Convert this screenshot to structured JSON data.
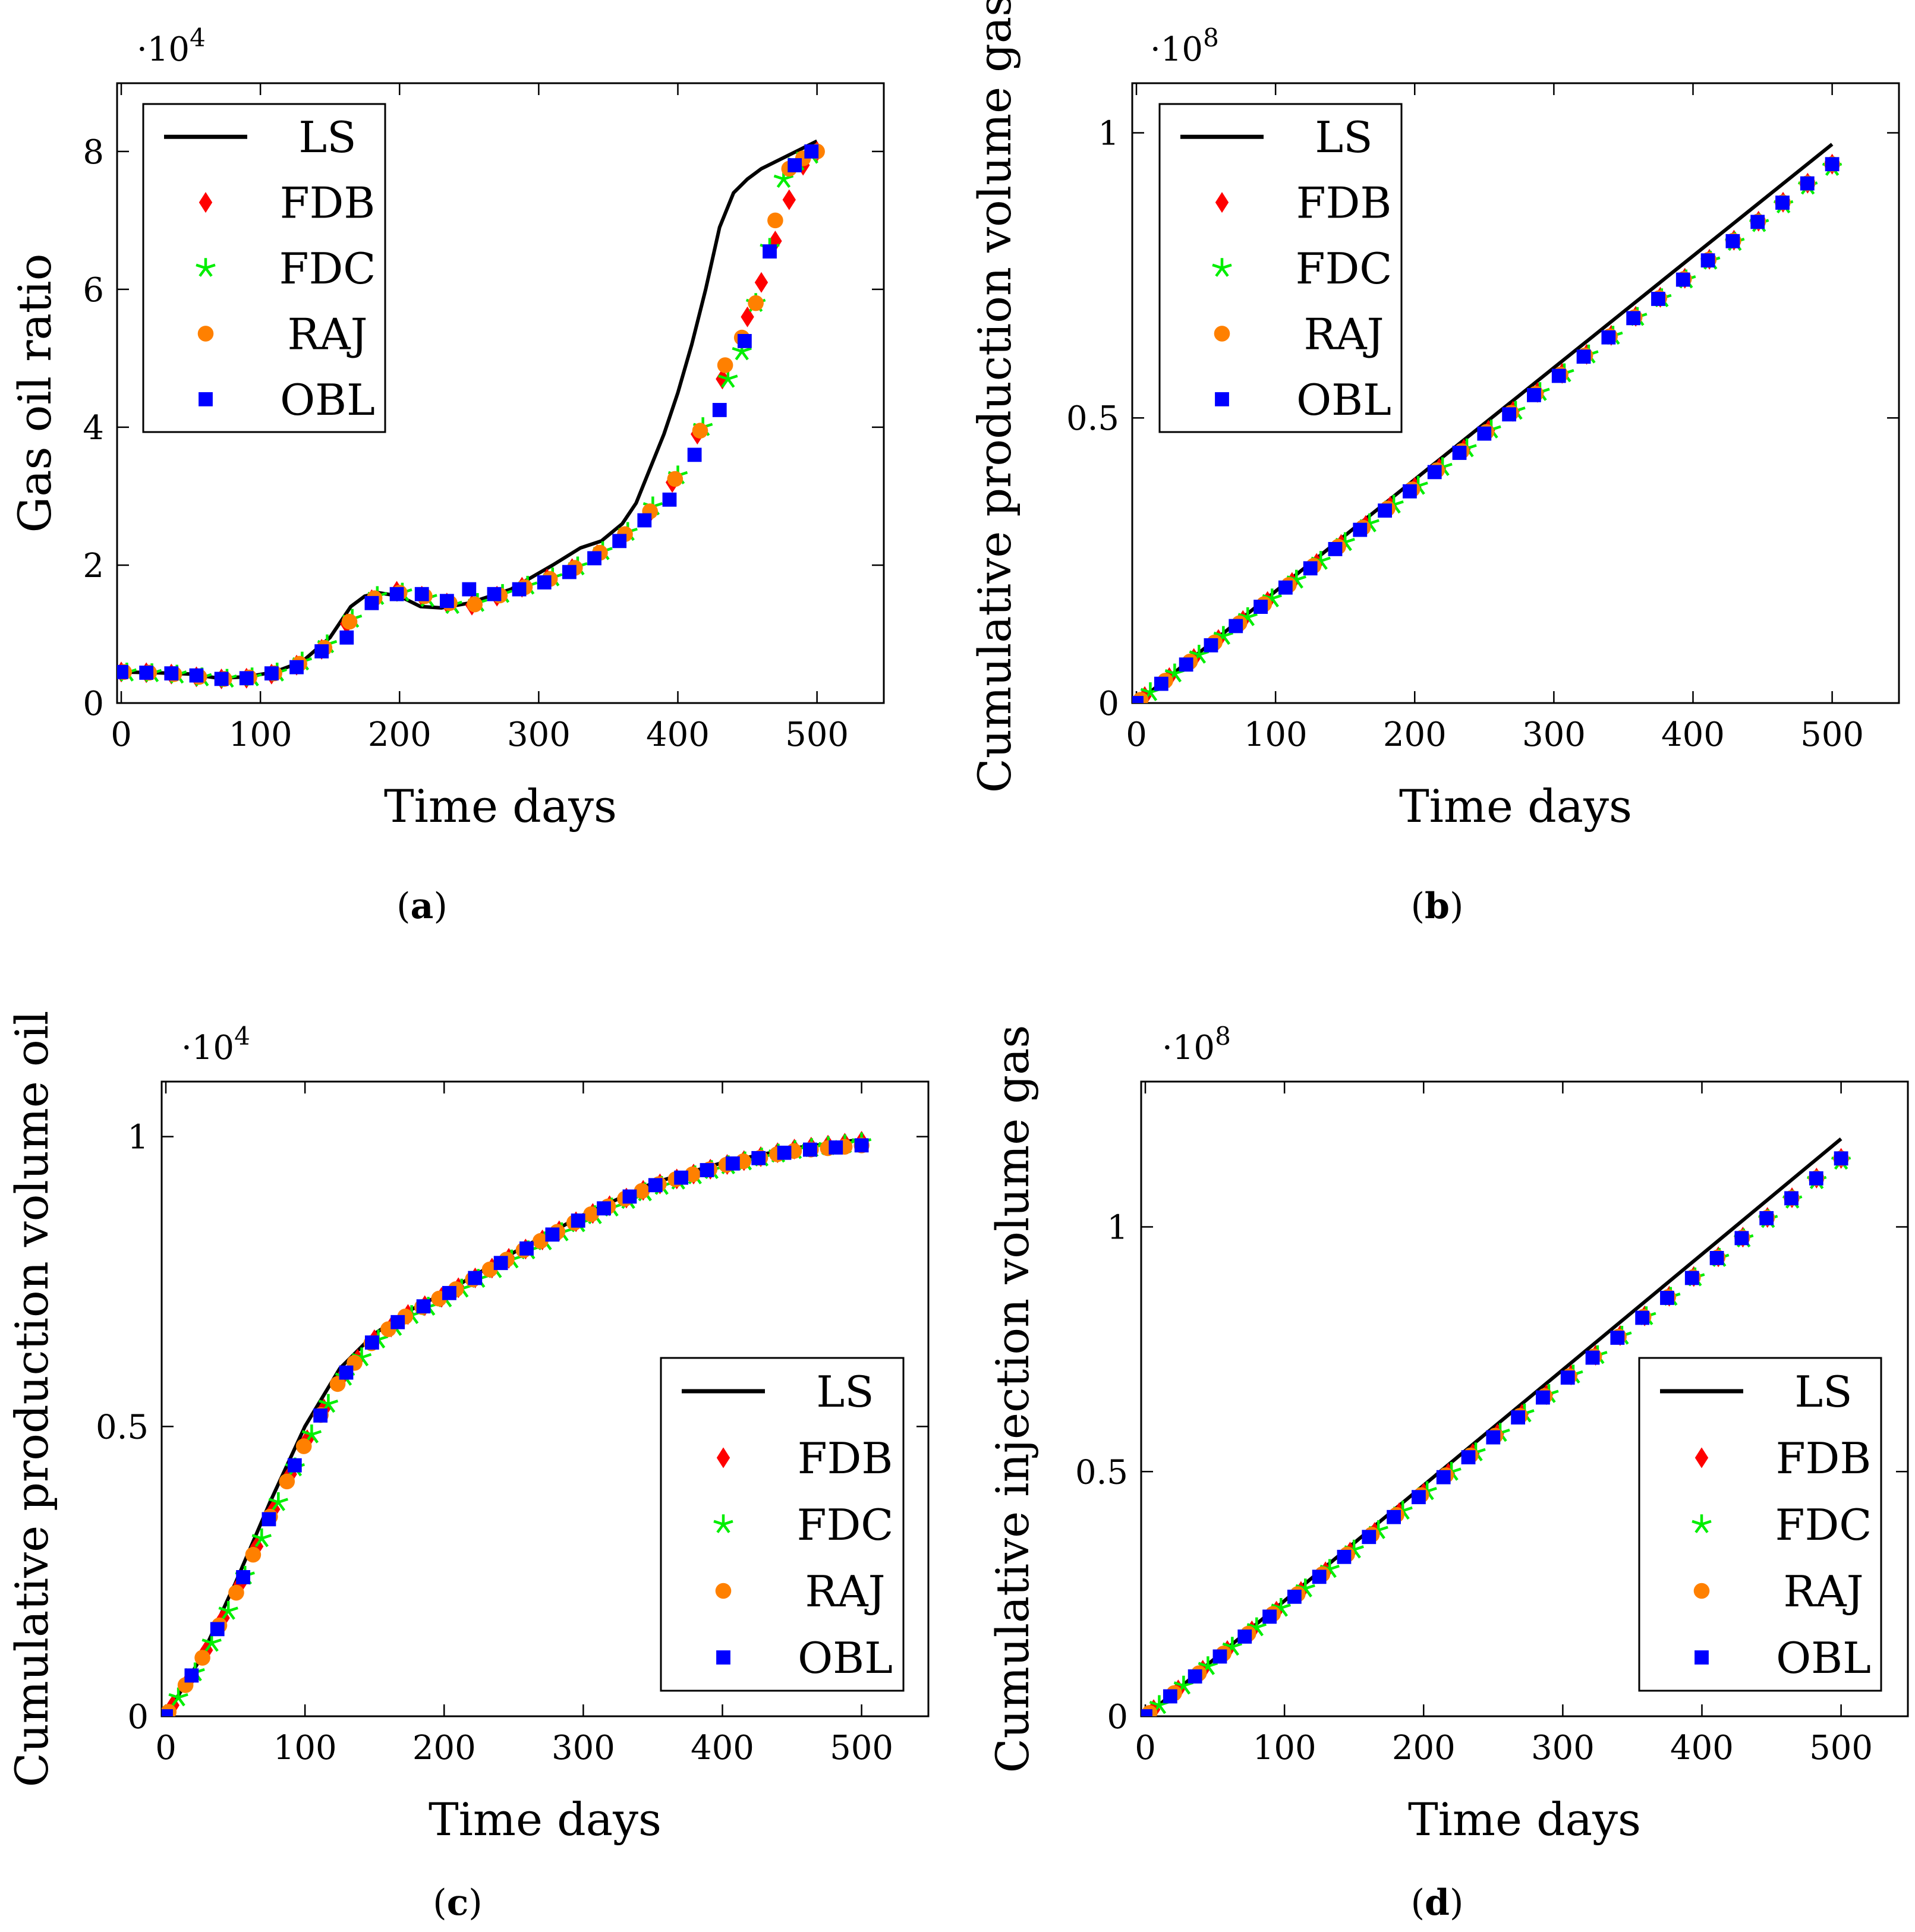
{
  "colors": {
    "LS": "#000000",
    "FDB": "#ff0000",
    "FDC": "#00ee00",
    "RAJ": "#ff8000",
    "OBL": "#0000ff"
  },
  "chart_data": [
    {
      "id": "a",
      "type": "line",
      "caption_letter": "a",
      "xlabel": "Time days",
      "ylabel": "Gas oil ratio",
      "y_exponent": "·10",
      "y_exponent_power": "4",
      "xlim": [
        -3,
        548
      ],
      "ylim": [
        0,
        8.99
      ],
      "xticks": [
        0,
        100,
        200,
        300,
        400,
        500
      ],
      "xtick_labels": [
        "0",
        "100",
        "200",
        "300",
        "400",
        "500"
      ],
      "yticks": [
        0,
        2,
        4,
        6,
        8
      ],
      "ytick_labels": [
        "0",
        "2",
        "4",
        "6",
        "8"
      ],
      "legend": [
        "LS",
        "FDB",
        "FDC",
        "RAJ",
        "OBL"
      ],
      "legend_position": "top-left",
      "series": [
        {
          "name": "LS",
          "style": "line",
          "x": [
            0,
            25,
            50,
            70,
            90,
            110,
            130,
            150,
            165,
            175,
            185,
            200,
            215,
            230,
            250,
            280,
            310,
            330,
            345,
            360,
            370,
            380,
            390,
            400,
            410,
            420,
            430,
            440,
            445,
            450,
            460,
            470,
            480,
            490,
            500
          ],
          "y": [
            0.45,
            0.44,
            0.42,
            0.36,
            0.38,
            0.45,
            0.6,
            0.95,
            1.4,
            1.55,
            1.6,
            1.55,
            1.4,
            1.38,
            1.45,
            1.65,
            2.0,
            2.25,
            2.35,
            2.6,
            2.9,
            3.4,
            3.9,
            4.5,
            5.2,
            6.0,
            6.9,
            7.4,
            7.5,
            7.6,
            7.75,
            7.85,
            7.95,
            8.05,
            8.15
          ]
        },
        {
          "name": "FDB",
          "style": "diamond",
          "x": [
            0,
            18,
            36,
            54,
            72,
            90,
            108,
            126,
            144,
            162,
            180,
            198,
            216,
            234,
            252,
            270,
            288,
            306,
            324,
            342,
            360,
            378,
            396,
            414,
            432,
            450,
            460,
            470,
            480,
            490,
            500
          ],
          "y": [
            0.45,
            0.44,
            0.42,
            0.38,
            0.35,
            0.36,
            0.42,
            0.55,
            0.78,
            1.15,
            1.5,
            1.62,
            1.55,
            1.45,
            1.42,
            1.55,
            1.68,
            1.8,
            1.95,
            2.15,
            2.4,
            2.7,
            3.2,
            3.9,
            4.7,
            5.6,
            6.1,
            6.7,
            7.3,
            7.8,
            8.0
          ]
        },
        {
          "name": "FDC",
          "style": "star",
          "x": [
            4,
            22,
            40,
            58,
            76,
            94,
            112,
            130,
            148,
            166,
            184,
            202,
            220,
            238,
            256,
            274,
            292,
            310,
            328,
            346,
            364,
            382,
            400,
            418,
            436,
            446,
            456,
            466,
            476,
            486,
            496
          ],
          "y": [
            0.44,
            0.43,
            0.41,
            0.37,
            0.35,
            0.37,
            0.44,
            0.6,
            0.85,
            1.22,
            1.55,
            1.6,
            1.52,
            1.42,
            1.45,
            1.58,
            1.7,
            1.82,
            1.98,
            2.2,
            2.48,
            2.85,
            3.3,
            4.0,
            4.7,
            5.1,
            5.8,
            6.6,
            7.6,
            7.85,
            7.95
          ]
        },
        {
          "name": "RAJ",
          "style": "circle",
          "x": [
            2,
            20,
            38,
            56,
            74,
            92,
            110,
            128,
            146,
            164,
            182,
            200,
            218,
            236,
            254,
            272,
            290,
            308,
            326,
            344,
            362,
            380,
            398,
            416,
            434,
            446,
            456,
            470,
            480,
            490,
            500
          ],
          "y": [
            0.45,
            0.44,
            0.42,
            0.38,
            0.35,
            0.37,
            0.43,
            0.57,
            0.8,
            1.18,
            1.52,
            1.6,
            1.55,
            1.45,
            1.43,
            1.56,
            1.68,
            1.8,
            1.96,
            2.18,
            2.45,
            2.78,
            3.25,
            3.95,
            4.9,
            5.3,
            5.8,
            7.0,
            7.75,
            7.9,
            8.0
          ]
        },
        {
          "name": "OBL",
          "style": "square",
          "x": [
            0,
            18,
            36,
            54,
            72,
            90,
            108,
            126,
            144,
            162,
            180,
            198,
            216,
            234,
            250,
            268,
            286,
            304,
            322,
            340,
            358,
            376,
            394,
            412,
            430,
            448,
            466,
            484,
            496
          ],
          "y": [
            0.45,
            0.44,
            0.43,
            0.4,
            0.35,
            0.36,
            0.43,
            0.52,
            0.75,
            0.95,
            1.45,
            1.58,
            1.58,
            1.48,
            1.65,
            1.58,
            1.65,
            1.75,
            1.9,
            2.1,
            2.35,
            2.65,
            2.95,
            3.6,
            4.25,
            5.25,
            6.55,
            7.8,
            8.0
          ]
        }
      ]
    },
    {
      "id": "b",
      "type": "line",
      "caption_letter": "b",
      "xlabel": "Time days",
      "ylabel": "Cumulative production volume gas",
      "y_exponent": "·10",
      "y_exponent_power": "8",
      "xlim": [
        -3,
        548
      ],
      "ylim": [
        0,
        1.087
      ],
      "xticks": [
        0,
        100,
        200,
        300,
        400,
        500
      ],
      "xtick_labels": [
        "0",
        "100",
        "200",
        "300",
        "400",
        "500"
      ],
      "yticks": [
        0,
        0.5,
        1
      ],
      "ytick_labels": [
        "0",
        "0.5",
        "1"
      ],
      "legend": [
        "LS",
        "FDB",
        "FDC",
        "RAJ",
        "OBL"
      ],
      "legend_position": "top-left",
      "series": [
        {
          "name": "LS",
          "style": "line",
          "x": [
            0,
            500
          ],
          "y": [
            0,
            0.98
          ]
        },
        {
          "name": "FDB",
          "style": "diamond",
          "x": [
            0,
            500
          ],
          "y": [
            0,
            0.945
          ],
          "n": 29,
          "offset": 6
        },
        {
          "name": "FDC",
          "style": "star",
          "x": [
            0,
            500
          ],
          "y": [
            0,
            0.94
          ],
          "n": 29,
          "offset": 10
        },
        {
          "name": "RAJ",
          "style": "circle",
          "x": [
            0,
            500
          ],
          "y": [
            0,
            0.945
          ],
          "n": 29,
          "offset": 3
        },
        {
          "name": "OBL",
          "style": "square",
          "x": [
            0,
            500
          ],
          "y": [
            0,
            0.945
          ],
          "n": 29,
          "offset": 0
        }
      ]
    },
    {
      "id": "c",
      "type": "line",
      "caption_letter": "c",
      "xlabel": "Time days",
      "ylabel": "Cumulative production volume oil",
      "y_exponent": "·10",
      "y_exponent_power": "4",
      "xlim": [
        -3,
        548
      ],
      "ylim": [
        0,
        1.095
      ],
      "xticks": [
        0,
        100,
        200,
        300,
        400,
        500
      ],
      "xtick_labels": [
        "0",
        "100",
        "200",
        "300",
        "400",
        "500"
      ],
      "yticks": [
        0,
        0.5,
        1
      ],
      "ytick_labels": [
        "0",
        "0.5",
        "1"
      ],
      "legend": [
        "LS",
        "FDB",
        "FDC",
        "RAJ",
        "OBL"
      ],
      "legend_position": "bottom-right",
      "series": [
        {
          "name": "LS",
          "style": "line",
          "x": [
            0,
            25,
            50,
            75,
            100,
            125,
            150,
            175,
            200,
            250,
            300,
            350,
            400,
            450,
            500
          ],
          "y": [
            0,
            0.1,
            0.23,
            0.37,
            0.5,
            0.6,
            0.66,
            0.7,
            0.73,
            0.8,
            0.865,
            0.92,
            0.955,
            0.98,
            0.995
          ]
        },
        {
          "name": "FDB",
          "style": "diamond",
          "x": [
            0,
            25,
            50,
            75,
            100,
            125,
            150,
            175,
            200,
            250,
            300,
            350,
            400,
            450,
            500
          ],
          "y": [
            0,
            0.095,
            0.21,
            0.345,
            0.47,
            0.58,
            0.65,
            0.695,
            0.725,
            0.795,
            0.86,
            0.915,
            0.95,
            0.978,
            0.992
          ],
          "n": 42,
          "offset": 5
        },
        {
          "name": "FDC",
          "style": "star",
          "x": [
            0,
            25,
            50,
            75,
            100,
            125,
            150,
            175,
            200,
            250,
            300,
            350,
            400,
            450,
            500
          ],
          "y": [
            0,
            0.09,
            0.205,
            0.34,
            0.465,
            0.575,
            0.645,
            0.69,
            0.72,
            0.79,
            0.855,
            0.91,
            0.948,
            0.976,
            0.99
          ],
          "n": 42,
          "offset": 9
        },
        {
          "name": "RAJ",
          "style": "circle",
          "x": [
            0,
            25,
            50,
            75,
            100,
            125,
            150,
            175,
            200,
            250,
            300,
            350,
            400,
            450,
            500
          ],
          "y": [
            0,
            0.095,
            0.21,
            0.345,
            0.47,
            0.58,
            0.65,
            0.695,
            0.725,
            0.795,
            0.86,
            0.915,
            0.95,
            0.975,
            0.985
          ],
          "n": 42,
          "offset": 2
        },
        {
          "name": "OBL",
          "style": "square",
          "x": [
            0,
            25,
            50,
            75,
            100,
            125,
            150,
            175,
            200,
            250,
            300,
            350,
            400,
            450,
            500
          ],
          "y": [
            0,
            0.095,
            0.21,
            0.345,
            0.47,
            0.58,
            0.65,
            0.695,
            0.725,
            0.795,
            0.86,
            0.915,
            0.95,
            0.975,
            0.985
          ],
          "n": 28,
          "offset": 0
        }
      ]
    },
    {
      "id": "d",
      "type": "line",
      "caption_letter": "d",
      "xlabel": "Time days",
      "ylabel": "Cumulative injection volume gas",
      "y_exponent": "·10",
      "y_exponent_power": "8",
      "xlim": [
        -3,
        548
      ],
      "ylim": [
        0,
        1.297
      ],
      "xticks": [
        0,
        100,
        200,
        300,
        400,
        500
      ],
      "xtick_labels": [
        "0",
        "100",
        "200",
        "300",
        "400",
        "500"
      ],
      "yticks": [
        0,
        0.5,
        1
      ],
      "ytick_labels": [
        "0",
        "0.5",
        "1"
      ],
      "legend": [
        "LS",
        "FDB",
        "FDC",
        "RAJ",
        "OBL"
      ],
      "legend_position": "bottom-right",
      "series": [
        {
          "name": "LS",
          "style": "line",
          "x": [
            0,
            500
          ],
          "y": [
            0,
            1.18
          ]
        },
        {
          "name": "FDB",
          "style": "diamond",
          "x": [
            0,
            500
          ],
          "y": [
            0,
            1.14
          ],
          "n": 29,
          "offset": 6
        },
        {
          "name": "FDC",
          "style": "star",
          "x": [
            0,
            500
          ],
          "y": [
            0,
            1.135
          ],
          "n": 29,
          "offset": 10
        },
        {
          "name": "RAJ",
          "style": "circle",
          "x": [
            0,
            500
          ],
          "y": [
            0,
            1.14
          ],
          "n": 29,
          "offset": 3
        },
        {
          "name": "OBL",
          "style": "square",
          "x": [
            0,
            500
          ],
          "y": [
            0,
            1.14
          ],
          "n": 29,
          "offset": 0
        }
      ]
    }
  ]
}
